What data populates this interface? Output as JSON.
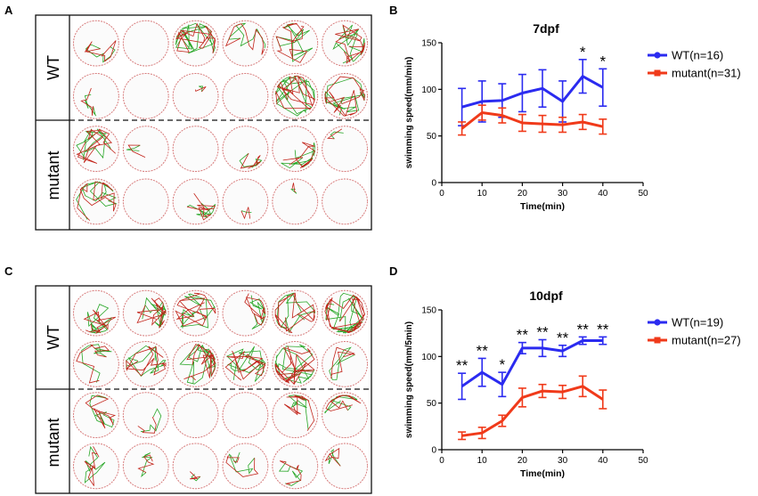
{
  "panels": {
    "A": {
      "letter": "A",
      "wt_label": "WT",
      "mutant_label": "mutant",
      "rows": [
        [
          3,
          0,
          8,
          4,
          6,
          7
        ],
        [
          2,
          0,
          1,
          0,
          9,
          8
        ],
        [
          6,
          1,
          0,
          3,
          6,
          1
        ],
        [
          6,
          0,
          4,
          1,
          1,
          0
        ]
      ]
    },
    "C": {
      "letter": "C",
      "wt_label": "WT",
      "mutant_label": "mutant",
      "rows": [
        [
          6,
          6,
          7,
          5,
          7,
          10
        ],
        [
          4,
          6,
          8,
          7,
          10,
          3
        ],
        [
          4,
          2,
          0,
          0,
          5,
          4
        ],
        [
          4,
          2,
          1,
          3,
          3,
          2
        ]
      ]
    }
  },
  "colors": {
    "wt": "#2b2bf0",
    "mutant": "#f03a1a",
    "well": "#d77a7a",
    "track_green": "#27a626",
    "track_red": "#c2241a"
  },
  "chart_data": [
    {
      "panel": "B",
      "type": "line",
      "title": "7dpf",
      "xlabel": "Time(min)",
      "ylabel": "swimming speed(mm/min)",
      "xlim": [
        0,
        50
      ],
      "ylim": [
        0,
        150
      ],
      "xticks": [
        0,
        10,
        20,
        30,
        40,
        50
      ],
      "yticks": [
        0,
        50,
        100,
        150
      ],
      "legend_position": "right",
      "series": [
        {
          "name": "WT(n=16)",
          "color": "#2b2bf0",
          "x": [
            5,
            10,
            15,
            20,
            25,
            30,
            35,
            40
          ],
          "y": [
            81,
            87,
            88,
            96,
            101,
            87,
            114,
            102
          ],
          "err": [
            20,
            22,
            18,
            20,
            20,
            22,
            18,
            20
          ]
        },
        {
          "name": "mutant(n=31)",
          "color": "#f03a1a",
          "x": [
            5,
            10,
            15,
            20,
            25,
            30,
            35,
            40
          ],
          "y": [
            58,
            75,
            72,
            64,
            63,
            62,
            65,
            60
          ],
          "err": [
            7,
            8,
            8,
            9,
            9,
            8,
            8,
            8
          ]
        }
      ],
      "annotations": [
        {
          "x": 35,
          "text": "*"
        },
        {
          "x": 40,
          "text": "*"
        }
      ]
    },
    {
      "panel": "D",
      "type": "line",
      "title": "10dpf",
      "xlabel": "Time(min)",
      "ylabel": "swimming speed(mm/5min)",
      "xlim": [
        0,
        50
      ],
      "ylim": [
        0,
        150
      ],
      "xticks": [
        0,
        10,
        20,
        30,
        40,
        50
      ],
      "yticks": [
        0,
        50,
        100,
        150
      ],
      "legend_position": "right",
      "series": [
        {
          "name": "WT(n=19)",
          "color": "#2b2bf0",
          "x": [
            5,
            10,
            15,
            20,
            25,
            30,
            35,
            40
          ],
          "y": [
            68,
            83,
            70,
            109,
            109,
            106,
            117,
            117
          ],
          "err": [
            14,
            15,
            13,
            6,
            9,
            6,
            4,
            4
          ]
        },
        {
          "name": "mutant(n=27)",
          "color": "#f03a1a",
          "x": [
            5,
            10,
            15,
            20,
            25,
            30,
            35,
            40
          ],
          "y": [
            15,
            18,
            31,
            56,
            63,
            62,
            68,
            54
          ],
          "err": [
            4,
            6,
            6,
            10,
            7,
            7,
            11,
            10
          ]
        }
      ],
      "annotations": [
        {
          "x": 5,
          "text": "**"
        },
        {
          "x": 10,
          "text": "**"
        },
        {
          "x": 15,
          "text": "*"
        },
        {
          "x": 20,
          "text": "**"
        },
        {
          "x": 25,
          "text": "**"
        },
        {
          "x": 30,
          "text": "**"
        },
        {
          "x": 35,
          "text": "**"
        },
        {
          "x": 40,
          "text": "**"
        }
      ]
    }
  ]
}
